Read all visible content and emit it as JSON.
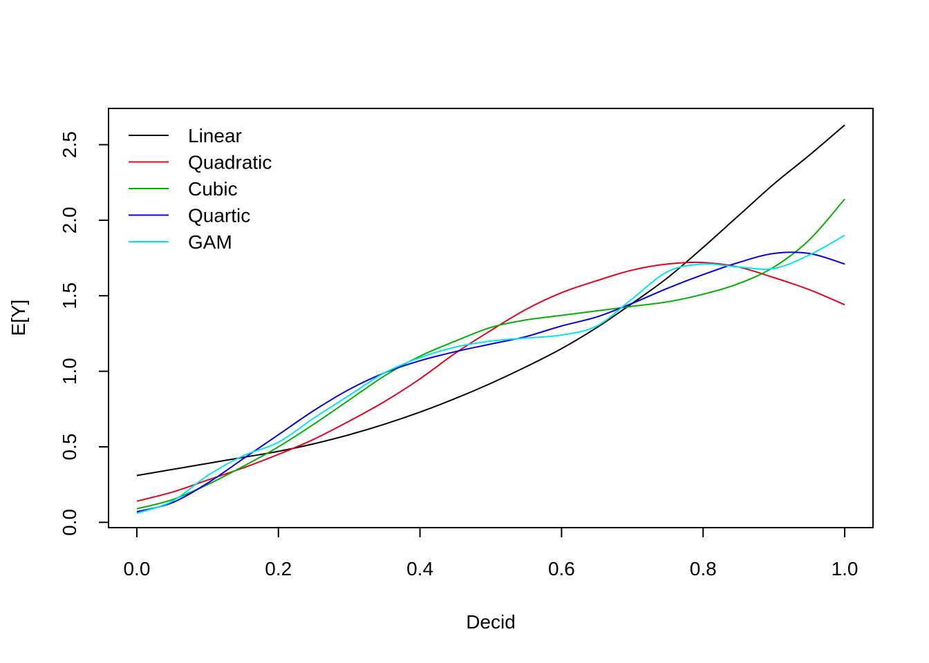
{
  "chart_data": {
    "type": "line",
    "xlabel": "Decid",
    "ylabel": "E[Y]",
    "xlim": [
      -0.04,
      1.04
    ],
    "ylim": [
      -0.035,
      2.74
    ],
    "xticks": [
      "0.0",
      "0.2",
      "0.4",
      "0.6",
      "0.8",
      "1.0"
    ],
    "yticks": [
      "0.0",
      "0.5",
      "1.0",
      "1.5",
      "2.0",
      "2.5"
    ],
    "grid": false,
    "legend_position": "top-left",
    "x": [
      0.0,
      0.05,
      0.1,
      0.15,
      0.2,
      0.25,
      0.3,
      0.35,
      0.4,
      0.45,
      0.5,
      0.55,
      0.6,
      0.65,
      0.7,
      0.75,
      0.8,
      0.85,
      0.9,
      0.95,
      1.0
    ],
    "series": [
      {
        "name": "Linear",
        "color": "#000000",
        "values": [
          0.31,
          0.35,
          0.39,
          0.43,
          0.47,
          0.52,
          0.58,
          0.65,
          0.73,
          0.82,
          0.92,
          1.03,
          1.15,
          1.29,
          1.45,
          1.62,
          1.82,
          2.03,
          2.24,
          2.43,
          2.63
        ]
      },
      {
        "name": "Quadratic",
        "color": "#e8001a",
        "values": [
          0.14,
          0.2,
          0.28,
          0.36,
          0.45,
          0.55,
          0.67,
          0.8,
          0.95,
          1.12,
          1.27,
          1.41,
          1.52,
          1.6,
          1.67,
          1.71,
          1.72,
          1.69,
          1.62,
          1.54,
          1.44
        ]
      },
      {
        "name": "Cubic",
        "color": "#00b000",
        "values": [
          0.09,
          0.15,
          0.25,
          0.37,
          0.5,
          0.65,
          0.81,
          0.97,
          1.1,
          1.2,
          1.29,
          1.34,
          1.37,
          1.4,
          1.43,
          1.46,
          1.51,
          1.58,
          1.69,
          1.87,
          2.14
        ]
      },
      {
        "name": "Quartic",
        "color": "#0000e6",
        "values": [
          0.07,
          0.13,
          0.26,
          0.42,
          0.58,
          0.74,
          0.88,
          0.99,
          1.07,
          1.13,
          1.18,
          1.23,
          1.3,
          1.36,
          1.45,
          1.55,
          1.64,
          1.72,
          1.78,
          1.78,
          1.71
        ]
      },
      {
        "name": "GAM",
        "color": "#00e5ee",
        "values": [
          0.06,
          0.14,
          0.31,
          0.44,
          0.53,
          0.69,
          0.84,
          0.99,
          1.09,
          1.16,
          1.2,
          1.22,
          1.24,
          1.3,
          1.48,
          1.66,
          1.71,
          1.69,
          1.68,
          1.77,
          1.9
        ]
      }
    ]
  }
}
